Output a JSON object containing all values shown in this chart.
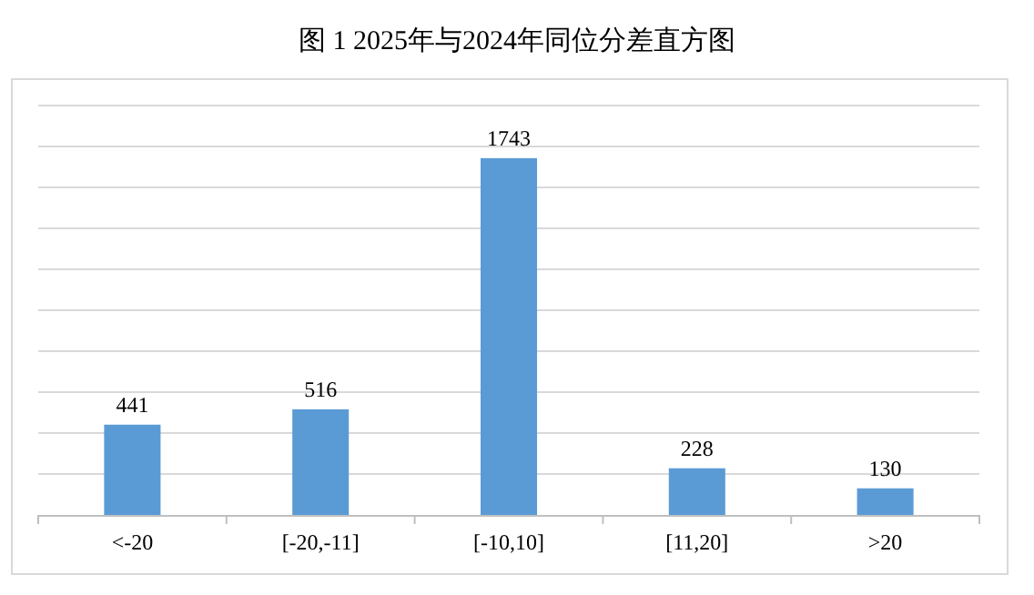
{
  "chart_data": {
    "type": "bar",
    "title": "图 1 2025年与2024年同位分差直方图",
    "categories": [
      "<-20",
      "[-20,-11]",
      "[-10,10]",
      "[11,20]",
      ">20"
    ],
    "values": [
      441,
      516,
      1743,
      228,
      130
    ],
    "color": "#5b9bd5",
    "ylim": [
      0,
      2000
    ],
    "yticks": [
      {
        "value": 0,
        "label": null
      },
      {
        "value": 200,
        "label": null
      },
      {
        "value": 400,
        "label": null
      },
      {
        "value": 600,
        "label": null
      },
      {
        "value": 800,
        "label": null
      },
      {
        "value": 1000,
        "label": null
      },
      {
        "value": 1200,
        "label": null
      },
      {
        "value": 1400,
        "label": null
      },
      {
        "value": 1600,
        "label": null
      },
      {
        "value": 1800,
        "label": null
      },
      {
        "value": 2000,
        "label": null
      }
    ],
    "tick_labels": "x",
    "grid": "y",
    "data_labels": true
  }
}
